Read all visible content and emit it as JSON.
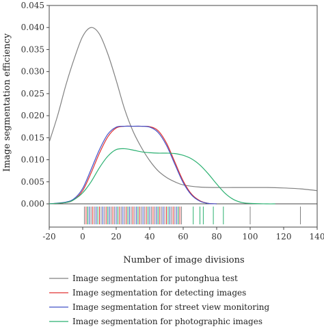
{
  "chart_data": {
    "type": "line",
    "xlabel": "Number of image divisions",
    "ylabel": "Image segmentation efficiency",
    "xlim": [
      -20,
      140
    ],
    "ylim": [
      0,
      0.045
    ],
    "x_ticks": [
      "-20",
      "0",
      "20",
      "40",
      "60",
      "80",
      "100",
      "120",
      "140"
    ],
    "y_ticks": [
      "0.000",
      "0.005",
      "0.010",
      "0.015",
      "0.020",
      "0.025",
      "0.030",
      "0.035",
      "0.040",
      "0.045"
    ],
    "series": [
      {
        "name": "Image segmentation for putonghua test",
        "color": "#808080",
        "points": [
          [
            -20,
            0.014
          ],
          [
            -15,
            0.02
          ],
          [
            -10,
            0.027
          ],
          [
            -5,
            0.033
          ],
          [
            0,
            0.038
          ],
          [
            5,
            0.04
          ],
          [
            10,
            0.0385
          ],
          [
            15,
            0.034
          ],
          [
            20,
            0.028
          ],
          [
            25,
            0.0215
          ],
          [
            30,
            0.0165
          ],
          [
            35,
            0.0128
          ],
          [
            40,
            0.0098
          ],
          [
            45,
            0.0075
          ],
          [
            50,
            0.006
          ],
          [
            55,
            0.005
          ],
          [
            60,
            0.0043
          ],
          [
            70,
            0.0038
          ],
          [
            80,
            0.0037
          ],
          [
            90,
            0.0037
          ],
          [
            100,
            0.0037
          ],
          [
            110,
            0.0037
          ],
          [
            120,
            0.0036
          ],
          [
            130,
            0.0034
          ],
          [
            140,
            0.003
          ]
        ]
      },
      {
        "name": "Image segmentation for detecting images",
        "color": "#e03030",
        "points": [
          [
            -20,
            0.0
          ],
          [
            -10,
            0.0003
          ],
          [
            -5,
            0.001
          ],
          [
            0,
            0.003
          ],
          [
            5,
            0.007
          ],
          [
            10,
            0.0115
          ],
          [
            15,
            0.0152
          ],
          [
            20,
            0.0172
          ],
          [
            25,
            0.0176
          ],
          [
            30,
            0.0176
          ],
          [
            35,
            0.0176
          ],
          [
            40,
            0.0175
          ],
          [
            45,
            0.0166
          ],
          [
            50,
            0.0138
          ],
          [
            55,
            0.0095
          ],
          [
            60,
            0.0052
          ],
          [
            65,
            0.0022
          ],
          [
            70,
            0.0007
          ],
          [
            75,
            0.0001
          ],
          [
            80,
            0.0
          ]
        ]
      },
      {
        "name": "Image segmentation for street view monitoring",
        "color": "#4050c8",
        "points": [
          [
            -20,
            0.0
          ],
          [
            -10,
            0.0004
          ],
          [
            -5,
            0.0012
          ],
          [
            0,
            0.0035
          ],
          [
            5,
            0.0078
          ],
          [
            10,
            0.0123
          ],
          [
            15,
            0.0158
          ],
          [
            20,
            0.0174
          ],
          [
            25,
            0.0176
          ],
          [
            30,
            0.0176
          ],
          [
            35,
            0.0176
          ],
          [
            40,
            0.0174
          ],
          [
            45,
            0.0162
          ],
          [
            50,
            0.0133
          ],
          [
            55,
            0.009
          ],
          [
            60,
            0.0048
          ],
          [
            65,
            0.002
          ],
          [
            70,
            0.0006
          ],
          [
            75,
            0.0001
          ],
          [
            80,
            0.0
          ]
        ]
      },
      {
        "name": "Image segmentation for photographic images",
        "color": "#2ab070",
        "points": [
          [
            -20,
            0.0
          ],
          [
            -10,
            0.0003
          ],
          [
            -5,
            0.001
          ],
          [
            0,
            0.0025
          ],
          [
            5,
            0.005
          ],
          [
            10,
            0.0082
          ],
          [
            15,
            0.0108
          ],
          [
            20,
            0.0123
          ],
          [
            25,
            0.0125
          ],
          [
            30,
            0.0122
          ],
          [
            35,
            0.0118
          ],
          [
            40,
            0.0116
          ],
          [
            45,
            0.0115
          ],
          [
            50,
            0.0115
          ],
          [
            55,
            0.0114
          ],
          [
            60,
            0.011
          ],
          [
            65,
            0.0102
          ],
          [
            70,
            0.0088
          ],
          [
            75,
            0.0068
          ],
          [
            80,
            0.0045
          ],
          [
            85,
            0.0024
          ],
          [
            90,
            0.001
          ],
          [
            95,
            0.0003
          ],
          [
            100,
            0.0001
          ],
          [
            110,
            0.0
          ],
          [
            115,
            0.0
          ]
        ]
      }
    ],
    "rug": {
      "putonghua": [
        1,
        3,
        5,
        7,
        9,
        11,
        13,
        15,
        17,
        19,
        21,
        23,
        25,
        27,
        29,
        31,
        33,
        35,
        37,
        39,
        41,
        43,
        45,
        47,
        49,
        51,
        53,
        55,
        57,
        59,
        100,
        130
      ],
      "detecting": [
        2,
        6,
        10,
        14,
        18,
        22,
        26,
        30,
        34,
        38,
        42,
        46,
        50,
        54,
        58
      ],
      "street": [
        4,
        8,
        12,
        16,
        20,
        24,
        28,
        32,
        36,
        40,
        44,
        48,
        52,
        56
      ],
      "photographic": [
        3,
        9,
        15,
        21,
        27,
        33,
        39,
        45,
        51,
        57,
        66,
        70,
        72,
        78,
        84
      ]
    },
    "legend_position": "bottom"
  }
}
